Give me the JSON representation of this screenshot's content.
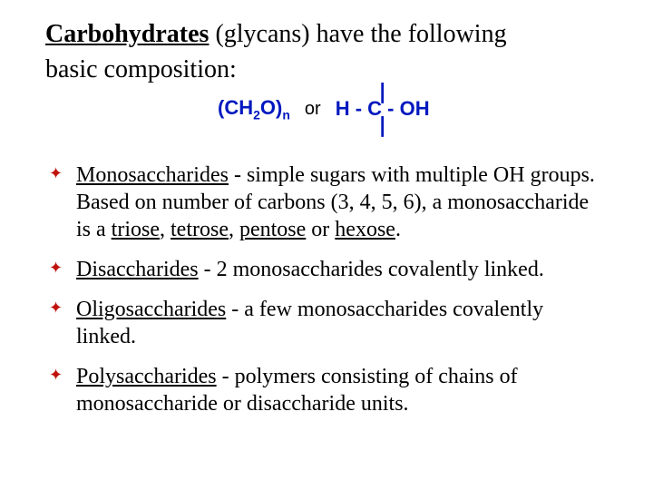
{
  "colors": {
    "text": "#000000",
    "formula_blue": "#0018bf",
    "bullet_red": "#c0110a",
    "background": "#ffffff"
  },
  "title": {
    "bold_underlined": "Carbohydrates",
    "rest_line1": " (glycans) have the following",
    "line2": "basic composition:"
  },
  "formula": {
    "left_pre": "(CH",
    "left_sub1": "2",
    "left_mid": "O)",
    "left_sub2": "n",
    "or": "or",
    "struct_top": "|",
    "struct_mid": "H - C - OH",
    "struct_bot": "|"
  },
  "bullets": [
    {
      "term": "Monosaccharides",
      "after_term": " - simple sugars with multiple OH groups. Based on number of carbons (3, 4, 5, 6), a monosaccharide is a ",
      "u1": "triose",
      "s1": ", ",
      "u2": "tetrose",
      "s2": ", ",
      "u3": "pentose",
      "s3": " or ",
      "u4": "hexose",
      "tail": "."
    },
    {
      "term": "Disaccharides",
      "after_term": " - 2 monosaccharides covalently linked."
    },
    {
      "term": "Oligosaccharides",
      "after_term": " - a few monosaccharides covalently linked."
    },
    {
      "term": "Polysaccharides",
      "after_term": " - polymers consisting of chains of monosaccharide or disaccharide units."
    }
  ]
}
